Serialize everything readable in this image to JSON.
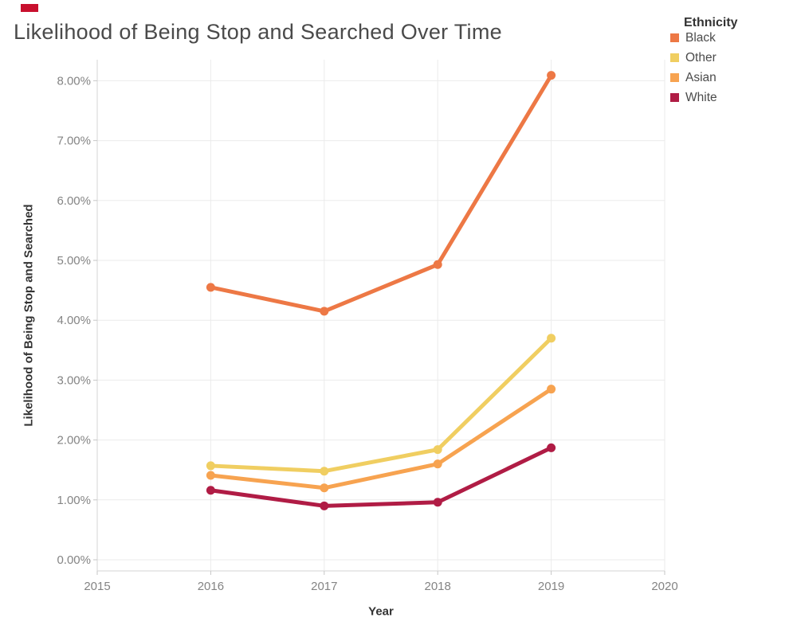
{
  "legend": {
    "title": "Ethnicity"
  },
  "artifacts": {
    "red_marker_color": "#c8102e"
  },
  "chart_data": {
    "type": "line",
    "title": "Likelihood of Being Stop and Searched Over Time",
    "xlabel": "Year",
    "ylabel": "Likelihood of Being Stop and Searched",
    "x": [
      2016,
      2017,
      2018,
      2019
    ],
    "series": [
      {
        "name": "Black",
        "color": "#ED7845",
        "values": [
          4.55,
          4.15,
          4.93,
          8.09
        ]
      },
      {
        "name": "Other",
        "color": "#F0CE61",
        "values": [
          1.57,
          1.48,
          1.84,
          3.7
        ]
      },
      {
        "name": "Asian",
        "color": "#F7A350",
        "values": [
          1.41,
          1.2,
          1.6,
          2.85
        ]
      },
      {
        "name": "White",
        "color": "#B01C45",
        "values": [
          1.16,
          0.9,
          0.96,
          1.87
        ]
      }
    ],
    "xlim": [
      2015,
      2020
    ],
    "ylim": [
      0,
      8
    ],
    "x_ticks": [
      "2015",
      "2016",
      "2017",
      "2018",
      "2019",
      "2020"
    ],
    "y_ticks": [
      "0.00%",
      "1.00%",
      "2.00%",
      "3.00%",
      "4.00%",
      "5.00%",
      "6.00%",
      "7.00%",
      "8.00%"
    ],
    "grid": true,
    "legend_position": "top-right",
    "marker": "circle",
    "colors": {
      "gridline": "#ebebeb",
      "axis_border": "#d6d6d6",
      "axis_tick": "#c6c6c6",
      "tick_label": "#848484",
      "title_text": "#4a4a4a",
      "axis_title_text": "#333333"
    }
  }
}
